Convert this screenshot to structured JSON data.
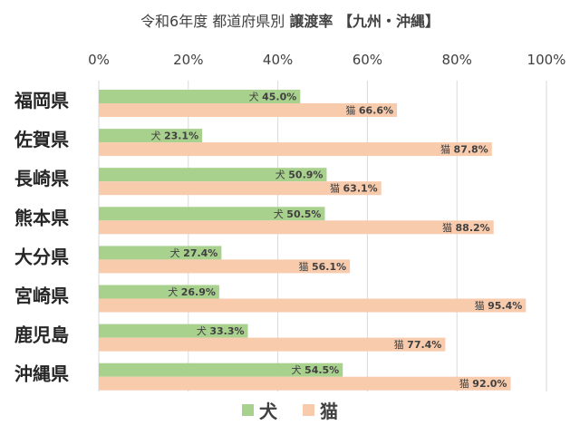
{
  "title": {
    "main": "令和6年度 都道府県別",
    "emphasis": "譲渡率 【九州・沖縄】"
  },
  "colors": {
    "dog": "#a9d18e",
    "cat": "#f8cbad",
    "grid": "#d9d9d9"
  },
  "chart_data": {
    "type": "bar",
    "orientation": "horizontal",
    "title": "令和6年度 都道府県別 譲渡率 【九州・沖縄】",
    "categories": [
      "福岡県",
      "佐賀県",
      "長崎県",
      "熊本県",
      "大分県",
      "宮崎県",
      "鹿児島",
      "沖縄県"
    ],
    "series": [
      {
        "name": "犬",
        "values": [
          45.0,
          23.1,
          50.9,
          50.5,
          27.4,
          26.9,
          33.3,
          54.5
        ]
      },
      {
        "name": "猫",
        "values": [
          66.6,
          87.8,
          63.1,
          88.2,
          56.1,
          95.4,
          77.4,
          92.0
        ]
      }
    ],
    "xlim": [
      0,
      100
    ],
    "xticks": [
      0,
      20,
      40,
      60,
      80,
      100
    ],
    "tick_labels": [
      "0%",
      "20%",
      "40%",
      "60%",
      "80%",
      "100%"
    ],
    "value_suffix": "%",
    "xlabel": "",
    "ylabel": "",
    "grid": true,
    "legend_position": "bottom"
  }
}
